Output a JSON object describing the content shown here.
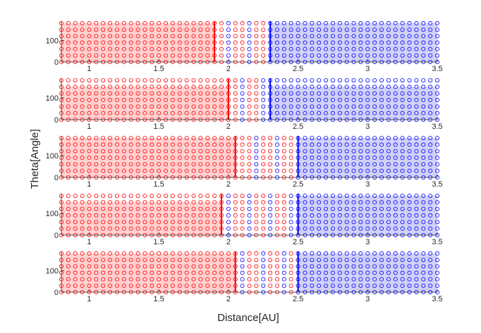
{
  "chart_data": {
    "type": "scatter",
    "xlabel": "Distance[AU]",
    "ylabel": "Theta[Angle]",
    "xlim": [
      0.8,
      3.5
    ],
    "ylim": [
      0,
      190
    ],
    "x_ticks": [
      1,
      1.5,
      2,
      2.5,
      3,
      3.5
    ],
    "x_tick_labels": [
      "1",
      "1.5",
      "2",
      "2.5",
      "3",
      "3.5"
    ],
    "y_ticks": [
      0,
      100
    ],
    "y_tick_labels": [
      "0",
      "100"
    ],
    "grid": false,
    "legend": "none",
    "colors": {
      "red_region": "#ff0000",
      "blue_region": "#0000ff",
      "red_fill": "#ffcccc",
      "blue_fill": "#ccccf5",
      "axes": "#262626"
    },
    "marker": "hollow-circle",
    "grid_points": {
      "x_start": 0.8,
      "x_end": 3.5,
      "x_step": 0.05,
      "theta_values": [
        0,
        30,
        60,
        90,
        120,
        150,
        180
      ]
    },
    "subplots": [
      {
        "id": 1,
        "red_region": [
          0.8,
          1.9
        ],
        "blue_region": [
          2.3,
          3.5
        ],
        "red_boundary": 1.9,
        "blue_boundary": 2.3,
        "red_fill_theta": [
          0,
          180
        ],
        "blue_fill_theta": [
          0,
          180
        ]
      },
      {
        "id": 2,
        "red_region": [
          0.8,
          2.0
        ],
        "blue_region": [
          2.3,
          3.5
        ],
        "red_boundary": 2.0,
        "blue_boundary": 2.3,
        "red_fill_theta": [
          0,
          150
        ],
        "blue_fill_theta": [
          0,
          150
        ]
      },
      {
        "id": 3,
        "red_region": [
          0.8,
          2.05
        ],
        "blue_region": [
          2.5,
          3.5
        ],
        "red_boundary": 2.05,
        "blue_boundary": 2.5,
        "red_fill_theta": [
          0,
          180
        ],
        "blue_fill_theta": [
          0,
          180
        ]
      },
      {
        "id": 4,
        "red_region": [
          0.8,
          1.95
        ],
        "blue_region": [
          2.5,
          3.5
        ],
        "red_boundary": 1.95,
        "blue_boundary": 2.5,
        "red_fill_theta": [
          0,
          150
        ],
        "blue_fill_theta": [
          0,
          180
        ]
      },
      {
        "id": 5,
        "red_region": [
          0.8,
          2.05
        ],
        "blue_region": [
          2.5,
          3.5
        ],
        "red_boundary": 2.05,
        "blue_boundary": 2.5,
        "red_fill_theta": [
          0,
          180
        ],
        "blue_fill_theta": [
          0,
          180
        ]
      }
    ]
  }
}
